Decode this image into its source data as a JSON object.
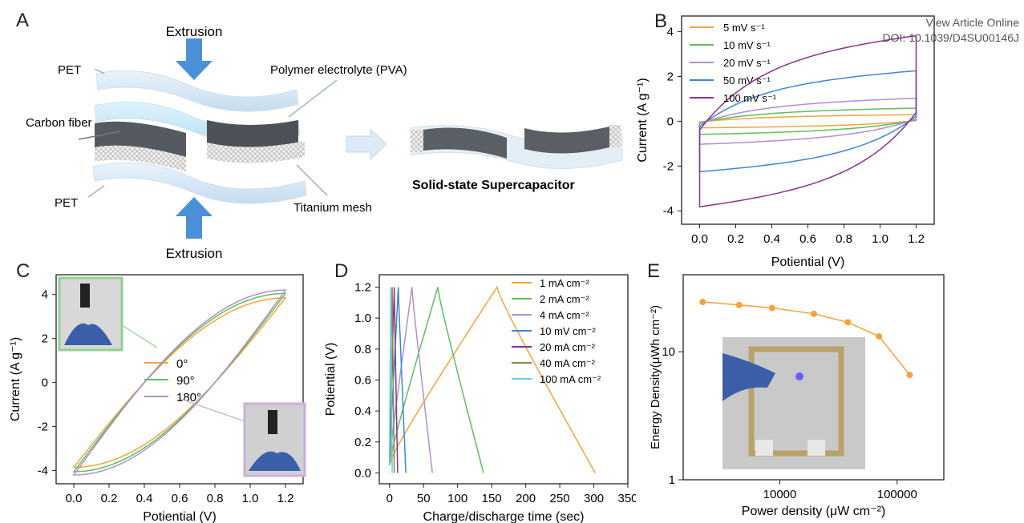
{
  "header": {
    "view_online": "View Article Online",
    "doi": "DOI: 10.1039/D4SU00146J"
  },
  "panels": {
    "A": {
      "letter": "A",
      "labels": {
        "extrusion_top": "Extrusion",
        "extrusion_bottom": "Extrusion",
        "pet_top": "PET",
        "pet_bottom": "PET",
        "polymer": "Polymer electrolyte (PVA)",
        "carbon": "Carbon fiber",
        "titanium": "Titanium mesh",
        "device": "Solid-state Supercapacitor"
      }
    },
    "C": {
      "letter": "C"
    },
    "D": {
      "letter": "D"
    }
  },
  "colors": {
    "orange": "#f5a33b",
    "green": "#5cbf5c",
    "lilac": "#b08fd0",
    "blue": "#3f86d6",
    "purple": "#8e2f91",
    "olive": "#8c8a3a",
    "cyan": "#5fd3de",
    "arrow_blue": "#4a90d9",
    "inset_green": "#8fd08f",
    "inset_lilac": "#c8b0dc"
  },
  "chart_data": [
    {
      "id": "B",
      "letter": "B",
      "type": "line",
      "xlabel": "Potiential (V)",
      "ylabel": "Current (A g⁻¹)",
      "xlim": [
        -0.1,
        1.3
      ],
      "ylim": [
        -4.6,
        4.7
      ],
      "xticks": [
        "0.0",
        "0.2",
        "0.4",
        "0.6",
        "0.8",
        "1.0",
        "1.2"
      ],
      "yticks": [
        "-4",
        "-2",
        "0",
        "2",
        "4"
      ],
      "legend_position": "top-left",
      "series": [
        {
          "name": "5 mV s⁻¹",
          "color": "#f5a33b",
          "amp": 0.3,
          "tail": 0.35
        },
        {
          "name": "10 mV s⁻¹",
          "color": "#5cbf5c",
          "amp": 0.6,
          "tail": 0.55
        },
        {
          "name": "20 mV s⁻¹",
          "color": "#b08fd0",
          "amp": 1.05,
          "tail": 0.85
        },
        {
          "name": "50 mV s⁻¹",
          "color": "#3f86d6",
          "amp": 2.3,
          "tail": 1.2
        },
        {
          "name": "100 mV s⁻¹",
          "color": "#8e2f91",
          "amp": 3.9,
          "tail": 2.0
        }
      ]
    },
    {
      "id": "C",
      "letter": "C",
      "type": "line",
      "xlabel": "Potiential (V)",
      "ylabel": "Current (A g⁻¹)",
      "xlim": [
        -0.1,
        1.3
      ],
      "ylim": [
        -4.6,
        4.9
      ],
      "xticks": [
        "0.0",
        "0.2",
        "0.4",
        "0.6",
        "0.8",
        "1.0",
        "1.2"
      ],
      "yticks": [
        "-4",
        "-2",
        "0",
        "2",
        "4"
      ],
      "legend_position": "center",
      "series": [
        {
          "name": "0°",
          "color": "#f5a33b",
          "amp": 3.85
        },
        {
          "name": "90°",
          "color": "#5cbf5c",
          "amp": 4.05
        },
        {
          "name": "180°",
          "color": "#b08fd0",
          "amp": 4.2
        }
      ]
    },
    {
      "id": "D",
      "letter": "D",
      "type": "line",
      "xlabel": "Charge/discharge time (sec)",
      "ylabel": "Potiential (V)",
      "xlim": [
        -15,
        350
      ],
      "ylim": [
        -0.07,
        1.28
      ],
      "xticks": [
        "0",
        "50",
        "100",
        "150",
        "200",
        "250",
        "300",
        "350"
      ],
      "yticks": [
        "0.0",
        "0.2",
        "0.4",
        "0.6",
        "0.8",
        "1.0",
        "1.2"
      ],
      "legend_position": "top-right",
      "series": [
        {
          "name": "1 mA cm⁻²",
          "color": "#f5a33b",
          "peak": 158,
          "end": 302
        },
        {
          "name": "2 mA cm⁻²",
          "color": "#5cbf5c",
          "peak": 71,
          "end": 138
        },
        {
          "name": "4 mA cm⁻²",
          "color": "#b08fd0",
          "peak": 33,
          "end": 63
        },
        {
          "name": "10 mV cm⁻²",
          "color": "#3f86d6",
          "peak": 13,
          "end": 24
        },
        {
          "name": "20 mA cm⁻²",
          "color": "#8e2f91",
          "peak": 7,
          "end": 12
        },
        {
          "name": "40 mA cm⁻²",
          "color": "#8c8a3a",
          "peak": 4,
          "end": 7
        },
        {
          "name": "100 mA cm⁻²",
          "color": "#5fd3de",
          "peak": 2,
          "end": 4
        }
      ]
    },
    {
      "id": "E",
      "letter": "E",
      "type": "line",
      "xlabel": "Power density (μW cm⁻²)",
      "ylabel": "Energy Density(μWh cm⁻²)",
      "xscale": "log",
      "yscale": "log",
      "xlim": [
        1500,
        250000
      ],
      "ylim": [
        1,
        40
      ],
      "xticks": [
        "10000",
        "100000"
      ],
      "yticks": [
        "1",
        "10"
      ],
      "x": [
        2200,
        4500,
        8600,
        19500,
        38000,
        70000,
        128000
      ],
      "y": [
        24.5,
        23.2,
        22,
        19.8,
        17,
        13.2,
        6.6
      ],
      "color": "#f5a33b"
    }
  ]
}
